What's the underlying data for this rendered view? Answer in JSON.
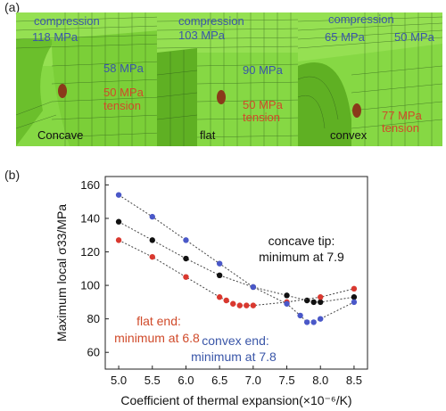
{
  "panel_a": {
    "label": "(a)",
    "panels": [
      {
        "name": "Concave",
        "compression_label": "compression",
        "compression_value_1": "118 MPa",
        "compression_value_2": "58 MPa",
        "tension_value": "50 MPa",
        "tension_label": "tension"
      },
      {
        "name": "flat",
        "compression_label": "compression",
        "compression_value_1": "103 MPa",
        "compression_value_2": "90 MPa",
        "tension_value": "50 MPa",
        "tension_label": "tension"
      },
      {
        "name": "convex",
        "compression_label": "compression",
        "compression_value_1": "65 MPa",
        "compression_value_2": "50 MPa",
        "tension_value": "77 MPa",
        "tension_label": "tension"
      }
    ],
    "colors": {
      "mesh_green": "#7fd13a",
      "mesh_line": "#2e5a1b",
      "blue": "#3a56a8",
      "red": "#d04a2a"
    }
  },
  "panel_b": {
    "label": "(b)",
    "annotations": {
      "concave_1": "concave tip:",
      "concave_2": "minimum at 7.9",
      "flat_1": "flat end:",
      "flat_2": "minimum at 6.8",
      "convex_1": "convex end:",
      "convex_2": "minimum at 7.8"
    }
  },
  "chart_data": {
    "type": "line",
    "xlabel": "Coefficient of thermal expansion(×10⁻⁶/K)",
    "ylabel": "Maximum local σ33/MPa",
    "xlim": [
      4.8,
      8.7
    ],
    "ylim": [
      50,
      165
    ],
    "xticks": [
      "5.0",
      "5.5",
      "6.0",
      "6.5",
      "7.0",
      "7.5",
      "8.0",
      "8.5"
    ],
    "yticks": [
      "60",
      "80",
      "100",
      "120",
      "140",
      "160"
    ],
    "grid": false,
    "series": [
      {
        "color": "#111111",
        "x": [
          5.0,
          5.5,
          6.0,
          6.5,
          7.0,
          7.5,
          7.8,
          7.9,
          8.0,
          8.5
        ],
        "y": [
          138,
          127,
          116,
          106,
          99,
          94,
          91,
          90,
          90,
          93
        ]
      },
      {
        "color": "#d9382f",
        "x": [
          5.0,
          5.5,
          6.0,
          6.5,
          6.6,
          6.7,
          6.8,
          6.9,
          7.0,
          7.5,
          8.0,
          8.5
        ],
        "y": [
          127,
          117,
          105,
          93,
          91,
          89,
          88,
          88,
          88,
          90,
          93,
          98
        ]
      },
      {
        "color": "#4a58c8",
        "x": [
          5.0,
          5.5,
          6.0,
          6.5,
          7.0,
          7.5,
          7.7,
          7.8,
          7.9,
          8.0,
          8.5
        ],
        "y": [
          154,
          141,
          127,
          113,
          99,
          89,
          82,
          78,
          78,
          80,
          90
        ]
      }
    ]
  }
}
